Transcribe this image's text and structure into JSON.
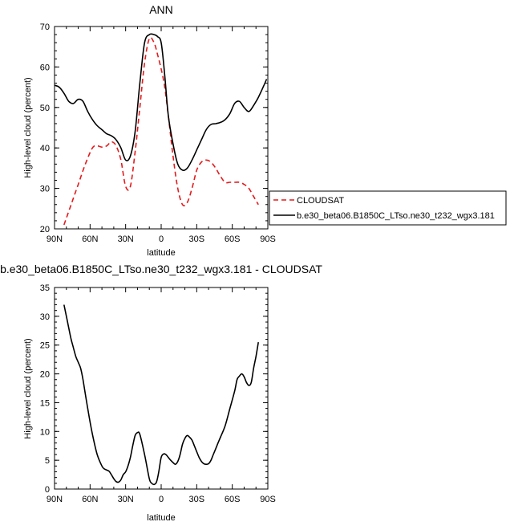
{
  "chart_data": [
    {
      "type": "line",
      "title": "ANN",
      "xlabel": "latitude",
      "ylabel": "High-level cloud (percent)",
      "xlim": [
        90,
        -90
      ],
      "ylim": [
        20,
        70
      ],
      "x_ticks": [
        90,
        60,
        30,
        0,
        -30,
        -60,
        -90
      ],
      "x_tick_labels": [
        "90N",
        "60N",
        "30N",
        "0",
        "30S",
        "60S",
        "90S"
      ],
      "y_ticks": [
        20,
        30,
        40,
        50,
        60,
        70
      ],
      "y_tick_labels": [
        "20",
        "30",
        "40",
        "50",
        "60",
        "70"
      ],
      "legend_position": "right",
      "series": [
        {
          "name": "CLOUDSAT",
          "color": "#e41a1c",
          "dash": "dashed",
          "x": [
            82,
            76,
            70,
            64,
            58,
            54,
            50,
            46,
            42,
            38,
            34,
            30,
            26,
            22,
            18,
            14,
            10,
            6,
            3,
            0,
            -3,
            -6,
            -10,
            -14,
            -18,
            -22,
            -26,
            -30,
            -34,
            -38,
            -42,
            -46,
            -50,
            -54,
            -58,
            -62,
            -66,
            -70,
            -74,
            -78,
            -82
          ],
          "y": [
            21,
            26,
            31,
            36,
            40,
            40.5,
            40.2,
            40.5,
            41.5,
            40.5,
            37,
            30.5,
            30.5,
            39,
            50,
            61,
            67,
            66,
            63,
            59.5,
            55,
            48,
            38,
            30,
            26,
            26.5,
            30,
            34.5,
            36.5,
            37,
            36.5,
            35,
            33,
            31.5,
            31.5,
            31.5,
            31.5,
            31,
            30,
            28,
            26
          ]
        },
        {
          "name": "b.e30_beta06.B1850C_LTso.ne30_t232_wgx3.181",
          "color": "#000000",
          "dash": "solid",
          "x": [
            90,
            86,
            82,
            78,
            74,
            70,
            66,
            62,
            58,
            54,
            50,
            46,
            42,
            38,
            34,
            30,
            26,
            22,
            18,
            14,
            10,
            6,
            3,
            0,
            -3,
            -6,
            -10,
            -14,
            -18,
            -22,
            -26,
            -30,
            -34,
            -38,
            -42,
            -46,
            -50,
            -54,
            -58,
            -62,
            -66,
            -70,
            -74,
            -78,
            -82,
            -86,
            -89
          ],
          "y": [
            55.5,
            55,
            53.5,
            51.5,
            51,
            52,
            51.5,
            49,
            47,
            45.5,
            44.5,
            43.5,
            43,
            42,
            40,
            37,
            38,
            44,
            56,
            66,
            68,
            68,
            67.5,
            66,
            58,
            48,
            41,
            36,
            34.5,
            35,
            37,
            39.5,
            42,
            44.5,
            45.8,
            46,
            46.3,
            47,
            48.5,
            51,
            51.5,
            50,
            49,
            50.5,
            52.5,
            55,
            57
          ]
        }
      ]
    },
    {
      "type": "line",
      "title": "b.e30_beta06.B1850C_LTso.ne30_t232_wgx3.181 - CLOUDSAT",
      "xlabel": "latitude",
      "ylabel": "High-level cloud (percent)",
      "xlim": [
        90,
        -90
      ],
      "ylim": [
        0,
        35
      ],
      "x_ticks": [
        90,
        60,
        30,
        0,
        -30,
        -60,
        -90
      ],
      "x_tick_labels": [
        "90N",
        "60N",
        "30N",
        "0",
        "30S",
        "60S",
        "90S"
      ],
      "y_ticks": [
        0,
        5,
        10,
        15,
        20,
        25,
        30,
        35
      ],
      "y_tick_labels": [
        "0",
        "5",
        "10",
        "15",
        "20",
        "25",
        "30",
        "35"
      ],
      "series": [
        {
          "color": "#000000",
          "dash": "solid",
          "x": [
            82,
            80,
            78,
            76,
            74,
            72,
            70,
            68,
            66,
            62,
            58,
            54,
            50,
            48,
            46,
            44,
            42,
            40,
            38,
            36,
            34,
            32,
            30,
            28,
            26,
            24,
            22,
            20,
            18,
            14,
            10,
            8,
            6,
            4,
            2,
            0,
            -2,
            -4,
            -6,
            -8,
            -10,
            -12,
            -14,
            -16,
            -18,
            -20,
            -22,
            -24,
            -26,
            -28,
            -30,
            -32,
            -34,
            -36,
            -38,
            -40,
            -42,
            -44,
            -46,
            -48,
            -50,
            -54,
            -58,
            -62,
            -64,
            -66,
            -68,
            -70,
            -72,
            -74,
            -76,
            -78,
            -80,
            -82
          ],
          "y": [
            32,
            30,
            28,
            26,
            24.5,
            23,
            22,
            21,
            19,
            14,
            9.5,
            6,
            4,
            3.5,
            3.3,
            3.1,
            2.5,
            1.8,
            1.3,
            1.2,
            1.6,
            2.5,
            3,
            4,
            5.5,
            7.5,
            9.3,
            9.8,
            9.5,
            6,
            1.8,
            1.0,
            0.8,
            1.2,
            3,
            5.5,
            6.1,
            6,
            5.5,
            5,
            4.6,
            4.3,
            4.8,
            6,
            7.8,
            8.8,
            9.3,
            9,
            8.5,
            7.5,
            6.5,
            5.5,
            4.8,
            4.4,
            4.3,
            4.4,
            5,
            6,
            7,
            8,
            9,
            11,
            14,
            17,
            19,
            19.6,
            20,
            19.5,
            18.5,
            18,
            18.5,
            21,
            23,
            25.5
          ]
        }
      ]
    }
  ]
}
